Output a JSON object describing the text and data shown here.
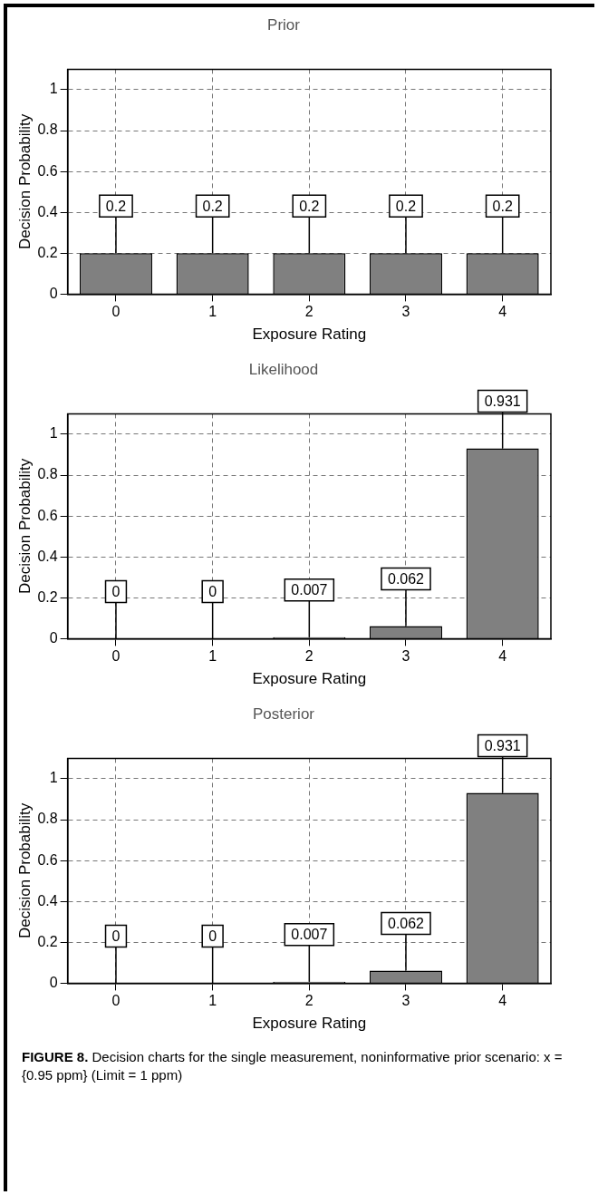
{
  "chart_data": [
    {
      "type": "bar",
      "title": "Prior",
      "xlabel": "Exposure Rating",
      "ylabel": "Decision Probability",
      "categories": [
        "0",
        "1",
        "2",
        "3",
        "4"
      ],
      "values": [
        0.2,
        0.2,
        0.2,
        0.2,
        0.2
      ],
      "color": "#808080",
      "ylim": [
        0,
        1.1
      ],
      "yticks": [
        0,
        0.2,
        0.4,
        0.6,
        0.8,
        1
      ],
      "grid": true,
      "legend": false,
      "data_labels": true
    },
    {
      "type": "bar",
      "title": "Likelihood",
      "xlabel": "Exposure Rating",
      "ylabel": "Decision Probability",
      "categories": [
        "0",
        "1",
        "2",
        "3",
        "4"
      ],
      "values": [
        0,
        0,
        0.007,
        0.062,
        0.931
      ],
      "color": "#808080",
      "ylim": [
        0,
        1.1
      ],
      "yticks": [
        0,
        0.2,
        0.4,
        0.6,
        0.8,
        1
      ],
      "grid": true,
      "legend": false,
      "data_labels": true
    },
    {
      "type": "bar",
      "title": "Posterior",
      "xlabel": "Exposure Rating",
      "ylabel": "Decision Probability",
      "categories": [
        "0",
        "1",
        "2",
        "3",
        "4"
      ],
      "values": [
        0,
        0,
        0.007,
        0.062,
        0.931
      ],
      "color": "#808080",
      "ylim": [
        0,
        1.1
      ],
      "yticks": [
        0,
        0.2,
        0.4,
        0.6,
        0.8,
        1
      ],
      "grid": true,
      "legend": false,
      "data_labels": true,
      "annotations": [
        "FIGURE 8.  Decision charts for the single measurement, noninformative prior scenario: x = {0.95 ppm} (Limit = 1 ppm)"
      ]
    }
  ]
}
